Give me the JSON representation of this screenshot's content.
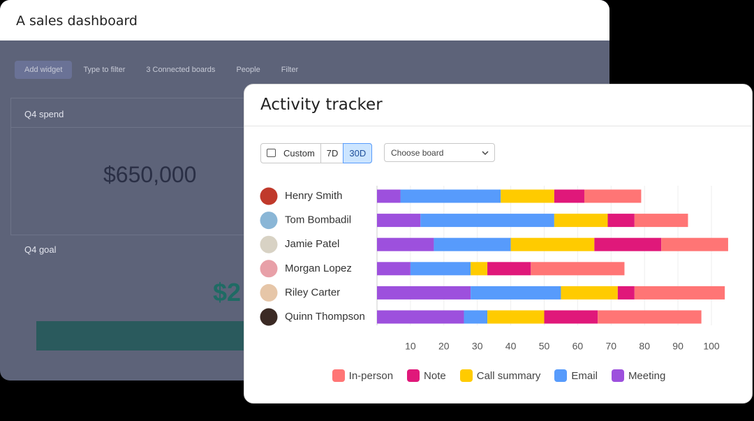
{
  "dashboard": {
    "title": "A sales dashboard",
    "toolbar": [
      "Add widget",
      "Type to filter",
      "3 Connected boards",
      "People",
      "Filter"
    ],
    "widgets": [
      {
        "title": "Q4 spend",
        "value": "$650,000"
      },
      {
        "title": "Q4 goal",
        "value": "$2"
      }
    ]
  },
  "tracker": {
    "title": "Activity tracker",
    "ranges": [
      "Custom",
      "7D",
      "30D"
    ],
    "board_select": "Choose board"
  },
  "chart_data": {
    "type": "bar",
    "orientation": "horizontal",
    "stacked": true,
    "categories": [
      "Henry Smith",
      "Tom Bombadil",
      "Jamie Patel",
      "Morgan Lopez",
      "Riley Carter",
      "Quinn Thompson"
    ],
    "series": [
      {
        "name": "In-person",
        "color": "#ff7575",
        "values": [
          17,
          16,
          20,
          28,
          27,
          31
        ]
      },
      {
        "name": "Note",
        "color": "#e0187a",
        "values": [
          9,
          8,
          20,
          13,
          5,
          16
        ]
      },
      {
        "name": "Call summary",
        "color": "#ffcb00",
        "values": [
          16,
          16,
          25,
          5,
          17,
          17
        ]
      },
      {
        "name": "Email",
        "color": "#579bfc",
        "values": [
          30,
          40,
          23,
          18,
          27,
          7
        ]
      },
      {
        "name": "Meeting",
        "color": "#9d50dd",
        "values": [
          7,
          13,
          17,
          10,
          28,
          26
        ]
      }
    ],
    "xlim": [
      0,
      107
    ],
    "xticks": [
      10,
      20,
      30,
      40,
      50,
      60,
      70,
      80,
      90,
      100
    ],
    "grid": true
  }
}
